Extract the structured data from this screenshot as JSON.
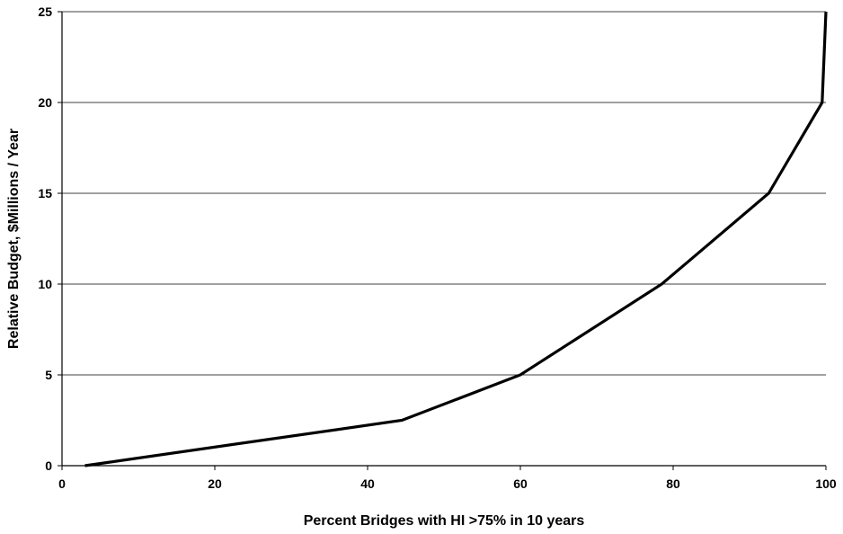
{
  "chart_data": {
    "type": "line",
    "title": "",
    "xlabel": "Percent Bridges with HI >75% in 10 years",
    "ylabel": "Relative Budget, $Millions / Year",
    "xlim": [
      0,
      100
    ],
    "ylim": [
      0,
      25
    ],
    "xticks": [
      "0",
      "20",
      "40",
      "60",
      "80",
      "100"
    ],
    "yticks": [
      "0",
      "5",
      "10",
      "15",
      "20",
      "25"
    ],
    "grid": "horizontal",
    "legend": "none",
    "series": [
      {
        "color": "#000000",
        "x": [
          3,
          44.5,
          60,
          78.5,
          92.5,
          99.5,
          100
        ],
        "y": [
          0,
          2.5,
          5,
          10,
          15,
          20,
          25
        ]
      }
    ]
  }
}
